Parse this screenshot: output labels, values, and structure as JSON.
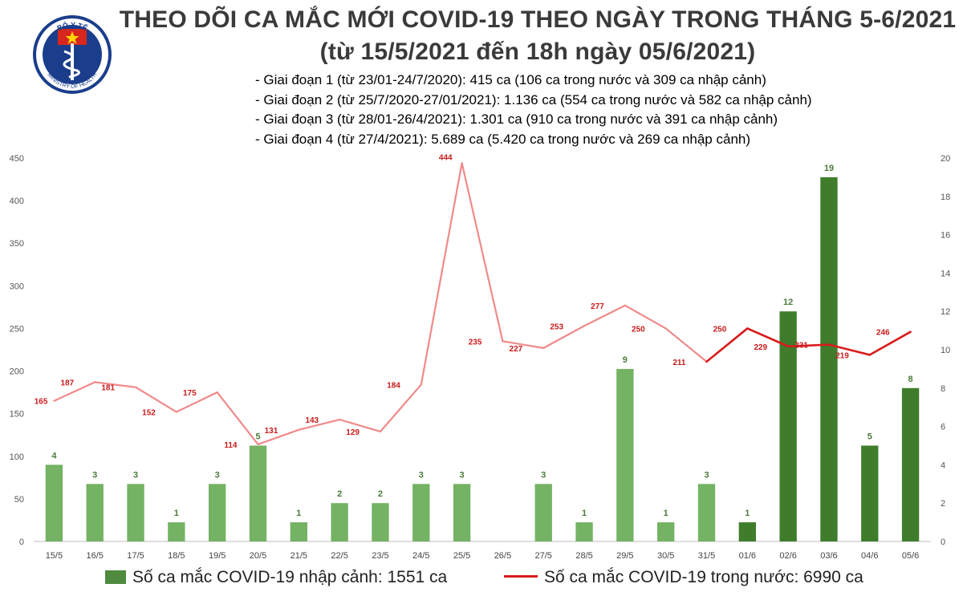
{
  "header": {
    "title_line1": "THEO DÕI CA MẮC MỚI COVID-19 THEO NGÀY TRONG THÁNG 5-6/2021",
    "title_line2": "(từ 15/5/2021 đến 18h ngày 05/6/2021)",
    "notes": [
      "- Giai đoạn 1 (từ 23/01-24/7/2020): 415 ca (106 ca trong nước và 309 ca nhập cảnh)",
      "- Giai đoạn 2 (từ 25/7/2020-27/01/2021): 1.136 ca (554 ca trong nước và 582 ca nhập cảnh)",
      "- Giai đoạn 3 (từ 28/01-26/4/2021): 1.301 ca (910 ca trong nước và 391 ca nhập cảnh)",
      "- Giai đoạn 4 (từ 27/4/2021): 5.689 ca (5.420 ca trong nước và 269 ca nhập cảnh)"
    ]
  },
  "logo": {
    "label_top": "BỘ Y TẾ",
    "label_bottom": "MINISTRY OF HEALTH",
    "colors": {
      "ring": "#1a3e8c",
      "star": "#d7261e",
      "flag": "#d7261e"
    }
  },
  "legend": {
    "bar_label": "Số ca mắc COVID-19 nhập cảnh: 1551 ca",
    "line_label": "Số ca mắc COVID-19 trong nước: 6990 ca"
  },
  "chart_data": {
    "type": "bar",
    "categories": [
      "15/5",
      "16/5",
      "17/5",
      "18/5",
      "19/5",
      "20/5",
      "21/5",
      "22/5",
      "23/5",
      "24/5",
      "25/5",
      "26/5",
      "27/5",
      "28/5",
      "29/5",
      "30/5",
      "31/5",
      "01/6",
      "02/6",
      "03/6",
      "04/6",
      "05/6"
    ],
    "series": [
      {
        "name": "Số ca mắc COVID-19 nhập cảnh: 1551 ca",
        "type": "bar",
        "axis": "right",
        "values": [
          4,
          3,
          3,
          1,
          3,
          5,
          1,
          2,
          2,
          3,
          3,
          null,
          3,
          1,
          9,
          1,
          3,
          1,
          12,
          19,
          5,
          8
        ]
      },
      {
        "name": "Số ca mắc COVID-19 trong nước: 6990 ca",
        "type": "line",
        "axis": "left",
        "values": [
          165,
          187,
          181,
          152,
          175,
          114,
          131,
          143,
          129,
          184,
          444,
          235,
          227,
          253,
          277,
          250,
          211,
          250,
          229,
          231,
          219,
          246
        ]
      }
    ],
    "y_left": {
      "range": [
        0,
        450
      ],
      "ticks": [
        0,
        50,
        100,
        150,
        200,
        250,
        300,
        350,
        400,
        450
      ]
    },
    "y_right": {
      "range": [
        0,
        20
      ],
      "ticks": [
        0,
        2,
        4,
        6,
        8,
        10,
        12,
        14,
        16,
        18,
        20
      ]
    },
    "bar_highlight_from": "01/6",
    "colors": {
      "bar_light": "#74b264",
      "bar_dark": "#3f7d2c",
      "line_light": "#f08a8a",
      "line_dark": "#d91b1b",
      "bar_label": "#4a7a3a",
      "line_label": "#c81a1a"
    },
    "legend_position": "bottom",
    "grid": false
  }
}
